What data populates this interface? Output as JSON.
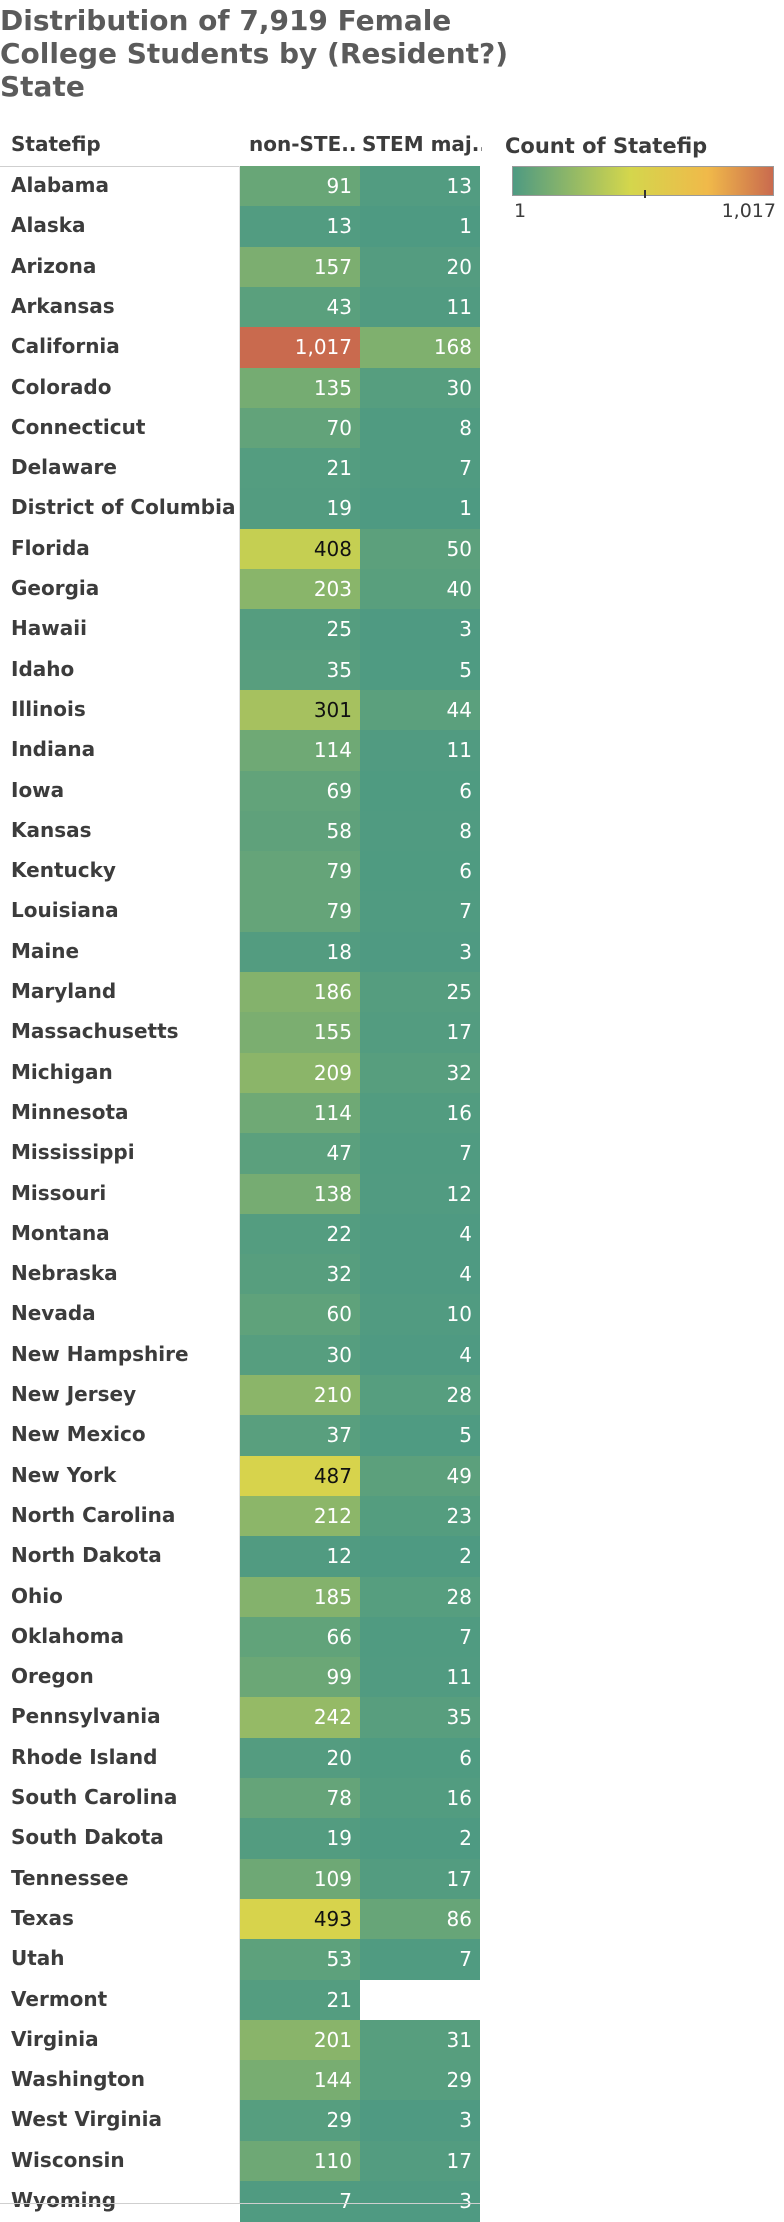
{
  "chart_data": {
    "type": "heatmap",
    "title": "Distribution of 7,919 Female College Students by (Resident?) State",
    "row_header": "Statefip",
    "columns": [
      "non-STE..",
      "STEM maj.."
    ],
    "legend": {
      "title": "Count of Statefip",
      "min_label": "1",
      "max_label": "1,017",
      "min": 1,
      "max": 1017,
      "colors": [
        "#4e9a82",
        "#d4d64c",
        "#f0b94a",
        "#c96a4e"
      ]
    },
    "rows": [
      {
        "state": "Alabama",
        "non_stem": 91,
        "stem": 13
      },
      {
        "state": "Alaska",
        "non_stem": 13,
        "stem": 1
      },
      {
        "state": "Arizona",
        "non_stem": 157,
        "stem": 20
      },
      {
        "state": "Arkansas",
        "non_stem": 43,
        "stem": 11
      },
      {
        "state": "California",
        "non_stem": 1017,
        "stem": 168
      },
      {
        "state": "Colorado",
        "non_stem": 135,
        "stem": 30
      },
      {
        "state": "Connecticut",
        "non_stem": 70,
        "stem": 8
      },
      {
        "state": "Delaware",
        "non_stem": 21,
        "stem": 7
      },
      {
        "state": "District of Columbia",
        "non_stem": 19,
        "stem": 1
      },
      {
        "state": "Florida",
        "non_stem": 408,
        "stem": 50
      },
      {
        "state": "Georgia",
        "non_stem": 203,
        "stem": 40
      },
      {
        "state": "Hawaii",
        "non_stem": 25,
        "stem": 3
      },
      {
        "state": "Idaho",
        "non_stem": 35,
        "stem": 5
      },
      {
        "state": "Illinois",
        "non_stem": 301,
        "stem": 44
      },
      {
        "state": "Indiana",
        "non_stem": 114,
        "stem": 11
      },
      {
        "state": "Iowa",
        "non_stem": 69,
        "stem": 6
      },
      {
        "state": "Kansas",
        "non_stem": 58,
        "stem": 8
      },
      {
        "state": "Kentucky",
        "non_stem": 79,
        "stem": 6
      },
      {
        "state": "Louisiana",
        "non_stem": 79,
        "stem": 7
      },
      {
        "state": "Maine",
        "non_stem": 18,
        "stem": 3
      },
      {
        "state": "Maryland",
        "non_stem": 186,
        "stem": 25
      },
      {
        "state": "Massachusetts",
        "non_stem": 155,
        "stem": 17
      },
      {
        "state": "Michigan",
        "non_stem": 209,
        "stem": 32
      },
      {
        "state": "Minnesota",
        "non_stem": 114,
        "stem": 16
      },
      {
        "state": "Mississippi",
        "non_stem": 47,
        "stem": 7
      },
      {
        "state": "Missouri",
        "non_stem": 138,
        "stem": 12
      },
      {
        "state": "Montana",
        "non_stem": 22,
        "stem": 4
      },
      {
        "state": "Nebraska",
        "non_stem": 32,
        "stem": 4
      },
      {
        "state": "Nevada",
        "non_stem": 60,
        "stem": 10
      },
      {
        "state": "New Hampshire",
        "non_stem": 30,
        "stem": 4
      },
      {
        "state": "New Jersey",
        "non_stem": 210,
        "stem": 28
      },
      {
        "state": "New Mexico",
        "non_stem": 37,
        "stem": 5
      },
      {
        "state": "New York",
        "non_stem": 487,
        "stem": 49
      },
      {
        "state": "North Carolina",
        "non_stem": 212,
        "stem": 23
      },
      {
        "state": "North Dakota",
        "non_stem": 12,
        "stem": 2
      },
      {
        "state": "Ohio",
        "non_stem": 185,
        "stem": 28
      },
      {
        "state": "Oklahoma",
        "non_stem": 66,
        "stem": 7
      },
      {
        "state": "Oregon",
        "non_stem": 99,
        "stem": 11
      },
      {
        "state": "Pennsylvania",
        "non_stem": 242,
        "stem": 35
      },
      {
        "state": "Rhode Island",
        "non_stem": 20,
        "stem": 6
      },
      {
        "state": "South Carolina",
        "non_stem": 78,
        "stem": 16
      },
      {
        "state": "South Dakota",
        "non_stem": 19,
        "stem": 2
      },
      {
        "state": "Tennessee",
        "non_stem": 109,
        "stem": 17
      },
      {
        "state": "Texas",
        "non_stem": 493,
        "stem": 86
      },
      {
        "state": "Utah",
        "non_stem": 53,
        "stem": 7
      },
      {
        "state": "Vermont",
        "non_stem": 21,
        "stem": null
      },
      {
        "state": "Virginia",
        "non_stem": 201,
        "stem": 31
      },
      {
        "state": "Washington",
        "non_stem": 144,
        "stem": 29
      },
      {
        "state": "West Virginia",
        "non_stem": 29,
        "stem": 3
      },
      {
        "state": "Wisconsin",
        "non_stem": 110,
        "stem": 17
      },
      {
        "state": "Wyoming",
        "non_stem": 7,
        "stem": 3
      }
    ]
  }
}
